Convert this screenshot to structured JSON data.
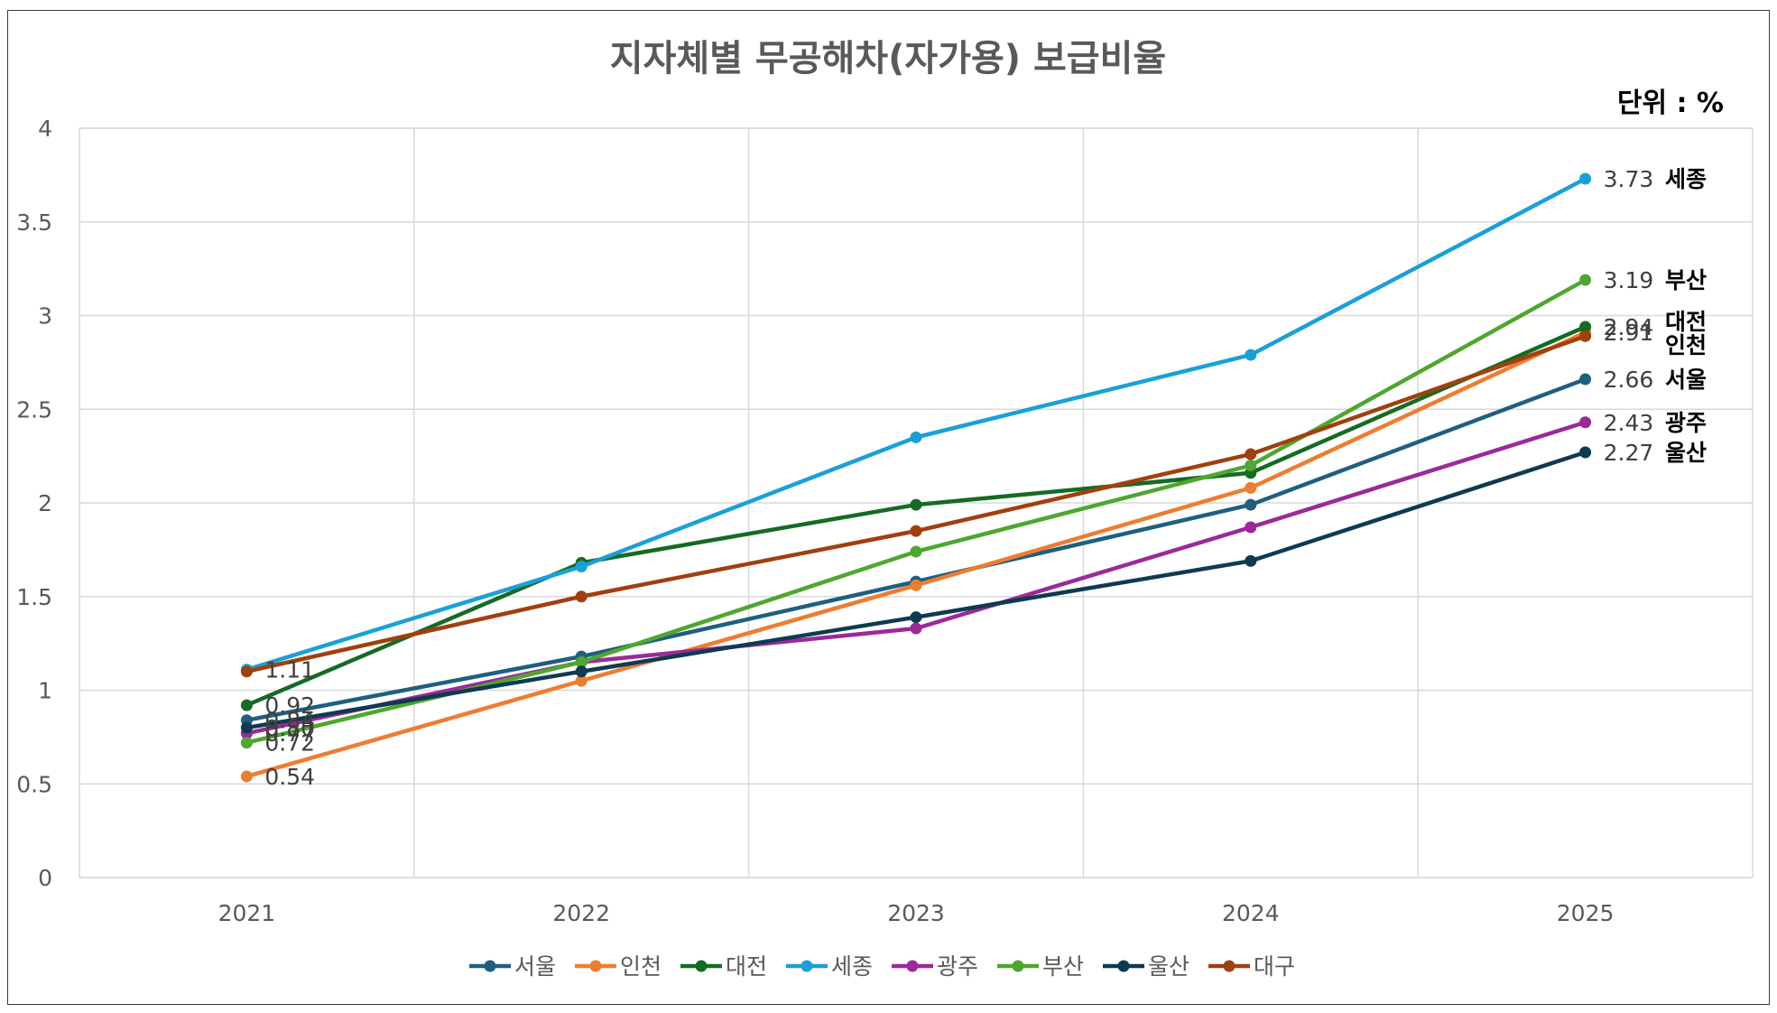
{
  "chart_data": {
    "type": "line",
    "title": "지자체별 무공해차(자가용) 보급비율",
    "unit_label": "단위 : %",
    "xlabel": "",
    "ylabel": "",
    "categories": [
      "2021",
      "2022",
      "2023",
      "2024",
      "2025"
    ],
    "ylim": [
      0,
      4
    ],
    "yticks": [
      "0",
      "0.5",
      "1",
      "1.5",
      "2",
      "2.5",
      "3",
      "3.5",
      "4"
    ],
    "grid": true,
    "legend_position": "bottom",
    "series": [
      {
        "name": "서울",
        "color": "#1f5f7f",
        "values": [
          0.84,
          1.18,
          1.58,
          1.99,
          2.66
        ],
        "labels": [
          "0.84",
          "",
          "",
          "",
          "2.66"
        ]
      },
      {
        "name": "인천",
        "color": "#ed7d31",
        "values": [
          0.54,
          1.05,
          1.56,
          2.08,
          2.91
        ],
        "labels": [
          "0.54",
          "",
          "",
          "",
          "2.91"
        ]
      },
      {
        "name": "대전",
        "color": "#156b22",
        "values": [
          0.92,
          1.68,
          1.99,
          2.16,
          2.94
        ],
        "labels": [
          "0.92",
          "",
          "",
          "",
          "2.94"
        ]
      },
      {
        "name": "세종",
        "color": "#1aa0d8",
        "values": [
          1.11,
          1.66,
          2.35,
          2.79,
          3.73
        ],
        "labels": [
          "1.11",
          "",
          "",
          "",
          "3.73"
        ]
      },
      {
        "name": "광주",
        "color": "#9b2a98",
        "values": [
          0.77,
          1.15,
          1.33,
          1.87,
          2.43
        ],
        "labels": [
          "0.77",
          "",
          "",
          "",
          "2.43"
        ]
      },
      {
        "name": "부산",
        "color": "#4ea72e",
        "values": [
          0.72,
          1.15,
          1.74,
          2.2,
          3.19
        ],
        "labels": [
          "0.72",
          "",
          "",
          "",
          "3.19"
        ]
      },
      {
        "name": "울산",
        "color": "#0e3a52",
        "values": [
          0.8,
          1.1,
          1.39,
          1.69,
          2.27
        ],
        "labels": [
          "0.80",
          "",
          "",
          "",
          "2.27"
        ]
      },
      {
        "name": "대구",
        "color": "#a0400e",
        "values": [
          1.1,
          1.5,
          1.85,
          2.26,
          2.89
        ],
        "labels": [
          "",
          "",
          "",
          "",
          ""
        ]
      }
    ]
  }
}
